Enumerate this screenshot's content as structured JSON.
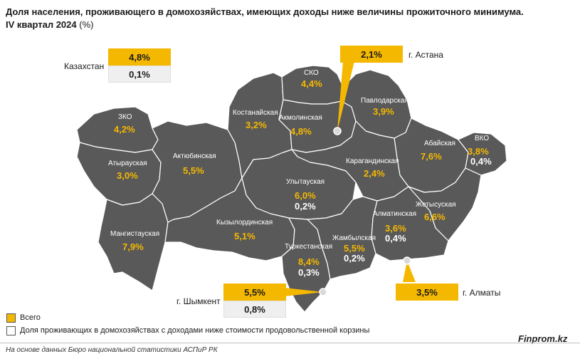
{
  "title": "Доля населения, проживающего в домохозяйствах, имеющих доходы ниже величины прожиточного минимума.",
  "subtitle": "IV квартал 2024",
  "unit": "(%)",
  "colors": {
    "total": "#f5b800",
    "basket": "#efefef",
    "region_fill": "#595959",
    "region_border": "#ffffff"
  },
  "kazakhstan": {
    "name": "Казахстан",
    "total": "4,8%",
    "basket": "0,1%"
  },
  "cities": {
    "astana": {
      "name": "г. Астана",
      "total": "2,1%"
    },
    "almaty": {
      "name": "г. Алматы",
      "total": "3,5%"
    },
    "shymkent": {
      "name": "г. Шымкент",
      "total": "5,5%",
      "basket": "0,8%"
    }
  },
  "regions": {
    "sko": {
      "name": "СКО",
      "total": "4,4%"
    },
    "kostanay": {
      "name": "Костанайская",
      "total": "3,2%"
    },
    "akmola": {
      "name": "Акмолинская",
      "total": "4,8%"
    },
    "pavlodar": {
      "name": "Павлодарская",
      "total": "3,9%"
    },
    "zko": {
      "name": "ЗКО",
      "total": "4,2%"
    },
    "atyrau": {
      "name": "Атырауская",
      "total": "3,0%"
    },
    "aktobe": {
      "name": "Актюбинская",
      "total": "5,5%"
    },
    "abay": {
      "name": "Абайская",
      "total": "7,6%"
    },
    "vko": {
      "name": "ВКО",
      "total": "3,8%",
      "basket": "0,4%"
    },
    "karaganda": {
      "name": "Карагандинская",
      "total": "2,4%"
    },
    "ulytau": {
      "name": "Улытауская",
      "total": "6,0%",
      "basket": "0,2%"
    },
    "zhetysu": {
      "name": "Жетысуская",
      "total": "6,6%"
    },
    "almaty_reg": {
      "name": "Алматинская",
      "total": "3,6%",
      "basket": "0,4%"
    },
    "mangystau": {
      "name": "Мангистауская",
      "total": "7,9%"
    },
    "kyzylorda": {
      "name": "Кызылординская",
      "total": "5,1%"
    },
    "zhambyl": {
      "name": "Жамбылская",
      "total": "5,5%",
      "basket": "0,2%"
    },
    "turkestan": {
      "name": "Туркестанская",
      "total": "8,4%",
      "basket": "0,3%"
    }
  },
  "legend": {
    "total": "Всего",
    "basket": "Доля проживающих в домохозяйствах с доходами ниже стоимости продовольственной корзины"
  },
  "source": "На основе данных Бюро национальной статистики АСПиР РК",
  "brand": "Finprom.kz"
}
